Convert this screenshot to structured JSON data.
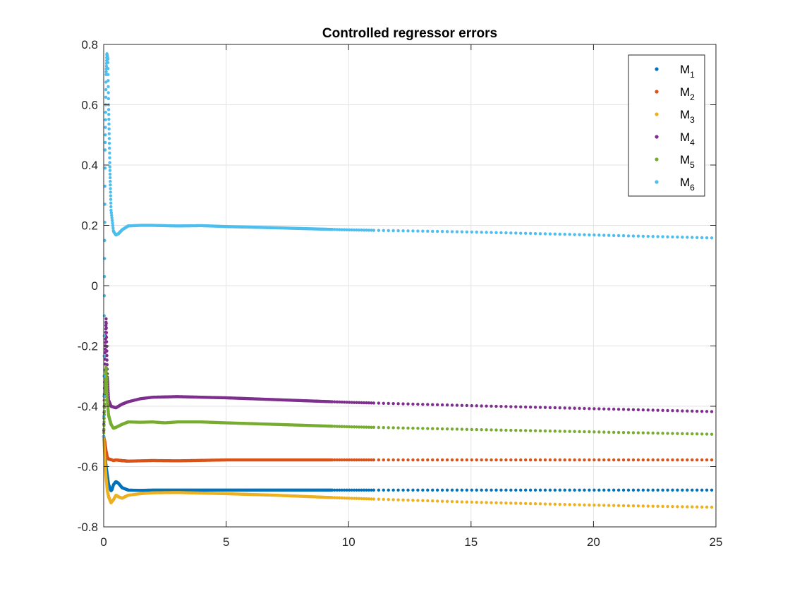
{
  "chart_data": {
    "type": "scatter",
    "title": "Controlled regressor errors",
    "xlabel": "",
    "ylabel": "",
    "xlim": [
      0,
      25
    ],
    "ylim": [
      -0.8,
      0.8
    ],
    "x_ticks": [
      0,
      5,
      10,
      15,
      20,
      25
    ],
    "x_tick_labels": [
      "0",
      "5",
      "10",
      "15",
      "20",
      "25"
    ],
    "y_ticks": [
      0.8,
      0.6,
      0.4,
      0.2,
      0,
      -0.2,
      -0.4,
      -0.6,
      -0.8
    ],
    "y_tick_labels": [
      "0.8",
      "0.6",
      "0.4",
      "0.2",
      "0",
      "-0.2",
      "-0.4",
      "-0.6",
      "-0.8"
    ],
    "grid": true,
    "legend_position": "top-right",
    "series": [
      {
        "name": "M1",
        "label_base": "M",
        "label_sub": "1",
        "color": "#0072BD",
        "points": [
          [
            0,
            -0.5
          ],
          [
            0.05,
            -0.56
          ],
          [
            0.1,
            -0.6
          ],
          [
            0.15,
            -0.63
          ],
          [
            0.2,
            -0.66
          ],
          [
            0.25,
            -0.67
          ],
          [
            0.3,
            -0.68
          ],
          [
            0.35,
            -0.675
          ],
          [
            0.4,
            -0.66
          ],
          [
            0.5,
            -0.65
          ],
          [
            0.6,
            -0.655
          ],
          [
            0.75,
            -0.67
          ],
          [
            1.0,
            -0.678
          ],
          [
            1.5,
            -0.679
          ],
          [
            2,
            -0.678
          ],
          [
            3,
            -0.678
          ],
          [
            5,
            -0.678
          ],
          [
            10,
            -0.678
          ],
          [
            15,
            -0.678
          ],
          [
            20,
            -0.678
          ],
          [
            25,
            -0.678
          ]
        ]
      },
      {
        "name": "M2",
        "label_base": "M",
        "label_sub": "2",
        "color": "#D95319",
        "points": [
          [
            0,
            -0.5
          ],
          [
            0.05,
            -0.52
          ],
          [
            0.1,
            -0.55
          ],
          [
            0.15,
            -0.57
          ],
          [
            0.2,
            -0.575
          ],
          [
            0.3,
            -0.577
          ],
          [
            0.4,
            -0.58
          ],
          [
            0.5,
            -0.578
          ],
          [
            0.7,
            -0.58
          ],
          [
            1.0,
            -0.582
          ],
          [
            2,
            -0.58
          ],
          [
            3,
            -0.581
          ],
          [
            5,
            -0.578
          ],
          [
            10,
            -0.578
          ],
          [
            15,
            -0.578
          ],
          [
            20,
            -0.578
          ],
          [
            25,
            -0.578
          ]
        ]
      },
      {
        "name": "M3",
        "label_base": "M",
        "label_sub": "3",
        "color": "#EDB120",
        "points": [
          [
            0,
            -0.5
          ],
          [
            0.05,
            -0.58
          ],
          [
            0.1,
            -0.64
          ],
          [
            0.15,
            -0.68
          ],
          [
            0.2,
            -0.7
          ],
          [
            0.3,
            -0.72
          ],
          [
            0.4,
            -0.71
          ],
          [
            0.5,
            -0.695
          ],
          [
            0.6,
            -0.7
          ],
          [
            0.75,
            -0.705
          ],
          [
            1.0,
            -0.695
          ],
          [
            1.5,
            -0.69
          ],
          [
            2,
            -0.687
          ],
          [
            3,
            -0.686
          ],
          [
            5,
            -0.69
          ],
          [
            7,
            -0.695
          ],
          [
            10,
            -0.705
          ],
          [
            15,
            -0.718
          ],
          [
            20,
            -0.728
          ],
          [
            25,
            -0.735
          ]
        ]
      },
      {
        "name": "M4",
        "label_base": "M",
        "label_sub": "4",
        "color": "#7E2F8E",
        "points": [
          [
            0,
            -0.5
          ],
          [
            0.05,
            -0.25
          ],
          [
            0.1,
            -0.11
          ],
          [
            0.15,
            -0.3
          ],
          [
            0.2,
            -0.38
          ],
          [
            0.3,
            -0.4
          ],
          [
            0.5,
            -0.405
          ],
          [
            0.75,
            -0.393
          ],
          [
            1.0,
            -0.385
          ],
          [
            1.5,
            -0.375
          ],
          [
            2,
            -0.37
          ],
          [
            3,
            -0.368
          ],
          [
            5,
            -0.372
          ],
          [
            7,
            -0.378
          ],
          [
            10,
            -0.387
          ],
          [
            15,
            -0.398
          ],
          [
            20,
            -0.408
          ],
          [
            25,
            -0.418
          ]
        ]
      },
      {
        "name": "M5",
        "label_base": "M",
        "label_sub": "5",
        "color": "#77AC30",
        "points": [
          [
            0,
            -0.5
          ],
          [
            0.05,
            -0.35
          ],
          [
            0.1,
            -0.27
          ],
          [
            0.15,
            -0.38
          ],
          [
            0.2,
            -0.43
          ],
          [
            0.3,
            -0.46
          ],
          [
            0.4,
            -0.473
          ],
          [
            0.5,
            -0.47
          ],
          [
            0.75,
            -0.46
          ],
          [
            1.0,
            -0.452
          ],
          [
            1.5,
            -0.453
          ],
          [
            2,
            -0.452
          ],
          [
            2.5,
            -0.455
          ],
          [
            3,
            -0.452
          ],
          [
            4,
            -0.452
          ],
          [
            5,
            -0.455
          ],
          [
            7,
            -0.46
          ],
          [
            10,
            -0.468
          ],
          [
            15,
            -0.477
          ],
          [
            20,
            -0.485
          ],
          [
            25,
            -0.493
          ]
        ]
      },
      {
        "name": "M6",
        "label_base": "M",
        "label_sub": "6",
        "color": "#4DBEEE",
        "points": [
          [
            0,
            -0.5
          ],
          [
            0.03,
            0.0
          ],
          [
            0.06,
            0.45
          ],
          [
            0.1,
            0.7
          ],
          [
            0.13,
            0.77
          ],
          [
            0.17,
            0.75
          ],
          [
            0.2,
            0.6
          ],
          [
            0.25,
            0.4
          ],
          [
            0.3,
            0.25
          ],
          [
            0.4,
            0.18
          ],
          [
            0.5,
            0.168
          ],
          [
            0.6,
            0.172
          ],
          [
            0.75,
            0.185
          ],
          [
            1.0,
            0.198
          ],
          [
            1.5,
            0.2
          ],
          [
            2,
            0.2
          ],
          [
            3,
            0.198
          ],
          [
            4,
            0.199
          ],
          [
            5,
            0.196
          ],
          [
            7,
            0.192
          ],
          [
            10,
            0.185
          ],
          [
            15,
            0.178
          ],
          [
            20,
            0.168
          ],
          [
            25,
            0.158
          ]
        ]
      }
    ]
  }
}
